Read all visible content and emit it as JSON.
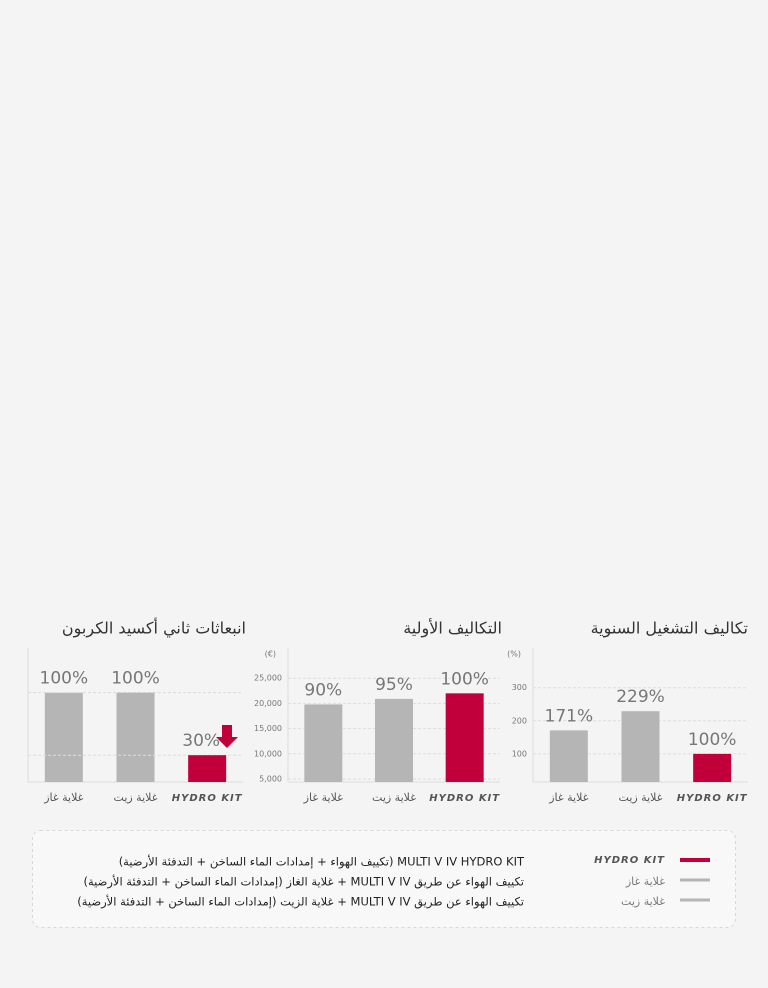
{
  "chart_data": [
    {
      "type": "bar",
      "title": "انبعاثات ثاني أكسيد الكربون",
      "categories": [
        "غلاية غاز",
        "غلاية زيت",
        "HYDRO KIT"
      ],
      "values": [
        100,
        100,
        30
      ],
      "value_labels": [
        "100%",
        "100%",
        "30%"
      ],
      "colors": [
        "#b5b5b5",
        "#b5b5b5",
        "#c1003b"
      ],
      "ylim": [
        0,
        150
      ]
    },
    {
      "type": "bar",
      "title": "التكاليف الأولية",
      "unit": "(€)",
      "categories": [
        "غلاية غاز",
        "غلاية زيت",
        "HYDRO KIT"
      ],
      "values": [
        19800,
        20900,
        22000
      ],
      "value_labels": [
        "90%",
        "95%",
        "100%"
      ],
      "colors": [
        "#b5b5b5",
        "#b5b5b5",
        "#c1003b"
      ],
      "ylim": [
        4400,
        31000
      ],
      "yticks": [
        {
          "value": 5000,
          "label": "5,000"
        },
        {
          "value": 10000,
          "label": "10,000"
        },
        {
          "value": 15000,
          "label": "15,000"
        },
        {
          "value": 20000,
          "label": "20,000"
        },
        {
          "value": 25000,
          "label": "25,000"
        }
      ],
      "grid": true
    },
    {
      "type": "bar",
      "title": "تكاليف التشغيل السنوية",
      "unit": "(%)",
      "categories": [
        "غلاية غاز",
        "غلاية زيت",
        "HYDRO KIT"
      ],
      "values": [
        171,
        229,
        100
      ],
      "value_labels": [
        "171%",
        "229%",
        "100%"
      ],
      "colors": [
        "#b5b5b5",
        "#b5b5b5",
        "#c1003b"
      ],
      "ylim": [
        15,
        420
      ],
      "yticks": [
        100,
        200,
        300
      ],
      "grid": true
    }
  ],
  "legend": [
    {
      "name": "HYDRO KIT",
      "color": "#c1003b",
      "description": "MULTI V IV HYDRO KIT (تكييف الهواء + إمدادات الماء الساخن + التدفئة الأرضية)"
    },
    {
      "name": "غلاية غاز",
      "color": "#b5b5b5",
      "description": "تكييف الهواء عن طريق MULTI V IV + غلاية الغاز (إمدادات الماء الساخن + التدفئة الأرضية)"
    },
    {
      "name": "غلاية زيت",
      "color": "#b5b5b5",
      "description": "تكييف الهواء عن طريق MULTI V IV + غلاية الزيت (إمدادات الماء الساخن + التدفئة الأرضية)"
    }
  ]
}
